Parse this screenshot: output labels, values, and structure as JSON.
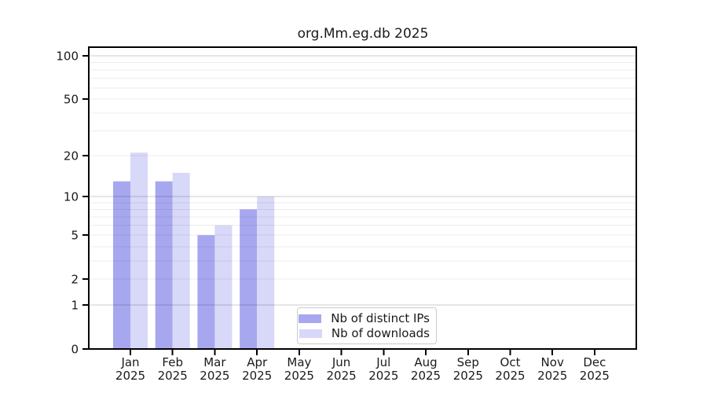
{
  "chart_data": {
    "type": "bar",
    "title": "org.Mm.eg.db 2025",
    "categories": [
      "Jan",
      "Feb",
      "Mar",
      "Apr",
      "May",
      "Jun",
      "Jul",
      "Aug",
      "Sep",
      "Oct",
      "Nov",
      "Dec"
    ],
    "category_year": "2025",
    "series": [
      {
        "name": "Nb of distinct IPs",
        "color": "#a7a7f0",
        "values": [
          13,
          13,
          5,
          8,
          0,
          0,
          0,
          0,
          0,
          0,
          0,
          0
        ]
      },
      {
        "name": "Nb of downloads",
        "color": "#d8d8f8",
        "values": [
          21,
          15,
          6,
          10,
          0,
          0,
          0,
          0,
          0,
          0,
          0,
          0
        ]
      }
    ],
    "y_scale": "log10(1+v)",
    "ylim": [
      0,
      100
    ],
    "y_ticks": [
      0,
      1,
      2,
      5,
      10,
      20,
      50,
      100
    ],
    "grid_major": [
      1,
      10,
      100
    ],
    "grid_minor": [
      2,
      3,
      4,
      5,
      6,
      7,
      8,
      9,
      20,
      30,
      40,
      50,
      60,
      70,
      80,
      90
    ],
    "legend_position": "inside-bottom-center",
    "colors": {
      "frame": "#000000",
      "text": "#1a1a1a",
      "grid_minor": "rgba(0,0,0,0.075)",
      "grid_major": "rgba(0,0,0,0.20)"
    }
  }
}
